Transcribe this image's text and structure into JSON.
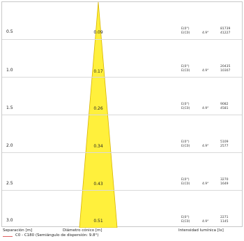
{
  "rows": [
    {
      "separation": "0.5",
      "diameter": "0.09",
      "e0_label": "E(0°)",
      "ec0_label": "E(C0)",
      "angle": "4.9°",
      "lux_e0": "81739",
      "lux_ec0": "41227"
    },
    {
      "separation": "1.0",
      "diameter": "0.17",
      "e0_label": "E(0°)",
      "ec0_label": "E(C0)",
      "angle": "4.9°",
      "lux_e0": "20435",
      "lux_ec0": "10307"
    },
    {
      "separation": "1.5",
      "diameter": "0.26",
      "e0_label": "E(0°)",
      "ec0_label": "E(C0)",
      "angle": "4.9°",
      "lux_e0": "9082",
      "lux_ec0": "4581"
    },
    {
      "separation": "2.0",
      "diameter": "0.34",
      "e0_label": "E(0°)",
      "ec0_label": "E(C0)",
      "angle": "4.9°",
      "lux_e0": "5109",
      "lux_ec0": "2577"
    },
    {
      "separation": "2.5",
      "diameter": "0.43",
      "e0_label": "E(0°)",
      "ec0_label": "E(C0)",
      "angle": "4.9°",
      "lux_e0": "3270",
      "lux_ec0": "1649"
    },
    {
      "separation": "3.0",
      "diameter": "0.51",
      "e0_label": "E(0°)",
      "ec0_label": "E(C0)",
      "angle": "4.9°",
      "lux_e0": "2271",
      "lux_ec0": "1145"
    }
  ],
  "footer": {
    "separation_label": "Separación [m]",
    "diameter_label": "Diámetro cónico [m]",
    "intensity_label": "Intensidad lumínica [lx]",
    "legend_text": "C0 - C180 (Semiángulo de dispersión: 9.8°)"
  },
  "colors": {
    "cone_fill": "#fff03c",
    "cone_stroke": "#d8b400",
    "legend_line": "#e06060",
    "grid": "#d9d9d9"
  }
}
